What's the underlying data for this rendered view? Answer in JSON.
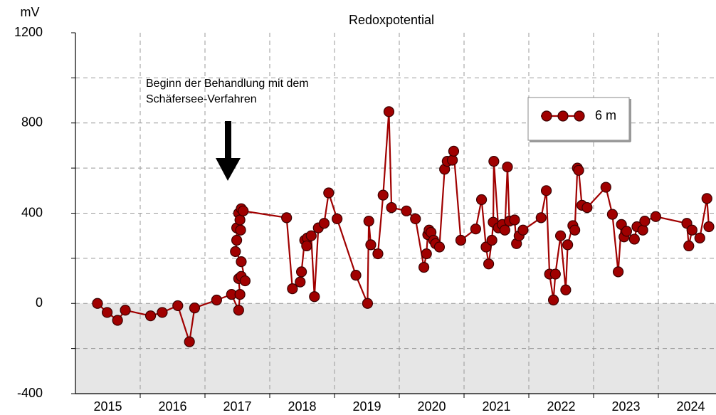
{
  "chart_data": {
    "type": "line",
    "title": "Redoxpotential",
    "y_label": "mV",
    "annotation": [
      "Beginn der Behandlung mit dem",
      "Schäfersee-Verfahren"
    ],
    "xlim": [
      2015,
      2024.89
    ],
    "xticks": [
      {
        "value": 2015.5,
        "label": "2015"
      },
      {
        "value": 2016.5,
        "label": "2016"
      },
      {
        "value": 2017.5,
        "label": "2017"
      },
      {
        "value": 2018.5,
        "label": "2018"
      },
      {
        "value": 2019.5,
        "label": "2019"
      },
      {
        "value": 2020.5,
        "label": "2020"
      },
      {
        "value": 2021.5,
        "label": "2021"
      },
      {
        "value": 2022.5,
        "label": "2022"
      },
      {
        "value": 2023.5,
        "label": "2023"
      },
      {
        "value": 2024.5,
        "label": "2024"
      }
    ],
    "x_gridlines": [
      2016,
      2017,
      2018,
      2019,
      2020,
      2021,
      2022,
      2023,
      2024
    ],
    "ylim": [
      -400,
      1200
    ],
    "yticks": [
      -400,
      0,
      400,
      800,
      1200
    ],
    "y_gridlines": [
      -200,
      200,
      600,
      1000
    ],
    "negative_shading": "#e6e6e6",
    "legend": "upper right",
    "series": [
      {
        "name": "6 m",
        "color": "#a00000",
        "x": [
          2015.34,
          2015.49,
          2015.65,
          2015.77,
          2016.16,
          2016.34,
          2016.58,
          2016.76,
          2016.84,
          2017.18,
          2017.41,
          2017.52,
          2017.54,
          2017.52,
          2017.56,
          2017.62,
          2017.56,
          2017.47,
          2017.49,
          2017.49,
          2017.52,
          2017.54,
          2017.55,
          2017.56,
          2017.59,
          2018.26,
          2018.35,
          2018.47,
          2018.49,
          2018.54,
          2018.58,
          2018.57,
          2018.64,
          2018.69,
          2018.75,
          2018.84,
          2018.91,
          2019.04,
          2019.33,
          2019.51,
          2019.53,
          2019.56,
          2019.67,
          2019.75,
          2019.84,
          2019.88,
          2020.11,
          2020.25,
          2020.38,
          2020.42,
          2020.44,
          2020.46,
          2020.49,
          2020.53,
          2020.56,
          2020.62,
          2020.7,
          2020.74,
          2020.82,
          2020.84,
          2020.95,
          2021.18,
          2021.27,
          2021.34,
          2021.38,
          2021.43,
          2021.45,
          2021.46,
          2021.53,
          2021.59,
          2021.63,
          2021.67,
          2021.7,
          2021.78,
          2021.81,
          2021.85,
          2021.91,
          2022.19,
          2022.27,
          2022.32,
          2022.38,
          2022.41,
          2022.49,
          2022.57,
          2022.6,
          2022.68,
          2022.71,
          2022.75,
          2022.77,
          2022.82,
          2022.9,
          2023.19,
          2023.29,
          2023.38,
          2023.43,
          2023.47,
          2023.51,
          2023.63,
          2023.67,
          2023.76,
          2023.79,
          2023.96,
          2024.44,
          2024.47,
          2024.52,
          2024.64,
          2024.75,
          2024.78
        ],
        "values": [
          0,
          -40,
          -75,
          -30,
          -55,
          -40,
          -10,
          -170,
          -20,
          15,
          40,
          -30,
          40,
          110,
          120,
          100,
          185,
          230,
          280,
          335,
          400,
          370,
          325,
          420,
          410,
          380,
          65,
          95,
          140,
          280,
          290,
          255,
          300,
          30,
          335,
          355,
          490,
          375,
          125,
          0,
          365,
          260,
          220,
          480,
          850,
          425,
          410,
          375,
          160,
          220,
          305,
          325,
          315,
          280,
          265,
          250,
          595,
          630,
          635,
          675,
          280,
          330,
          460,
          250,
          175,
          280,
          360,
          630,
          335,
          350,
          325,
          605,
          365,
          370,
          265,
          300,
          325,
          380,
          500,
          130,
          15,
          130,
          300,
          60,
          260,
          345,
          325,
          600,
          590,
          435,
          425,
          515,
          395,
          140,
          350,
          295,
          320,
          285,
          340,
          325,
          365,
          385,
          355,
          255,
          325,
          290,
          465,
          340
        ]
      }
    ]
  }
}
